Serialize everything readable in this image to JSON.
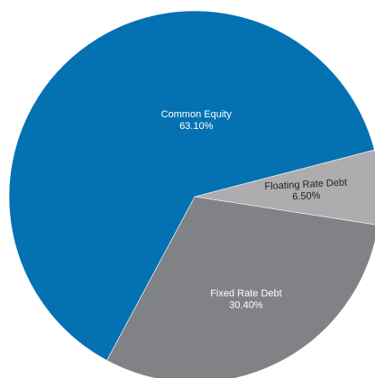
{
  "chart_data": {
    "type": "pie",
    "title": "",
    "slices": [
      {
        "label": "Common Equity",
        "value": 63.1,
        "display": "63.10%",
        "color": "#0472b2",
        "text_color": "#ffffff"
      },
      {
        "label": "Floating Rate Debt",
        "value": 6.5,
        "display": "6.50%",
        "color": "#adadb0",
        "text_color": "#222222"
      },
      {
        "label": "Fixed Rate Debt",
        "value": 30.4,
        "display": "30.40%",
        "color": "#818285",
        "text_color": "#ffffff"
      }
    ],
    "legend": "none"
  }
}
